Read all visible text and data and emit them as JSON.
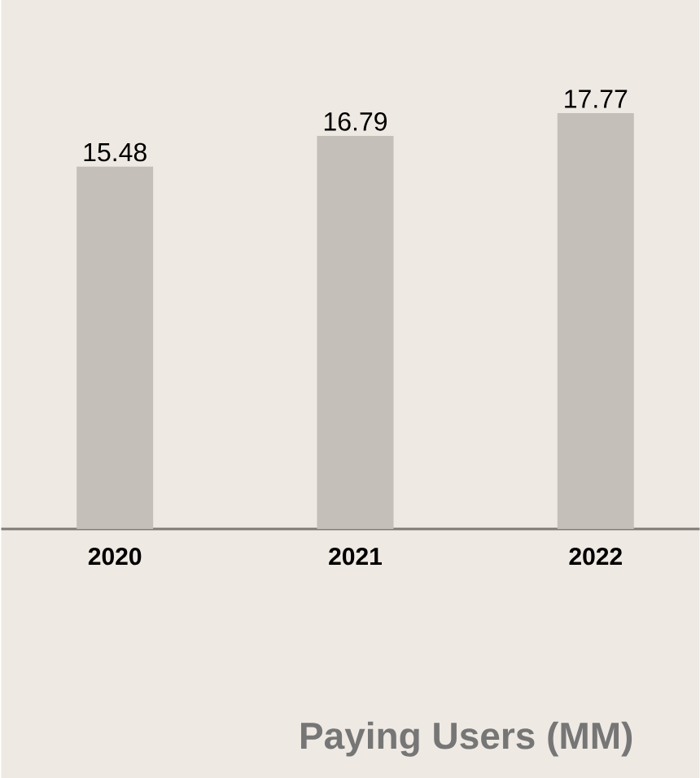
{
  "chart_data": {
    "type": "bar",
    "title": "Paying Users (MM)",
    "categories": [
      "2020",
      "2021",
      "2022"
    ],
    "values": [
      15.48,
      16.79,
      17.77
    ],
    "color": "#c4bfb9",
    "ylim": [
      0,
      22.6
    ],
    "data_labels": true
  }
}
